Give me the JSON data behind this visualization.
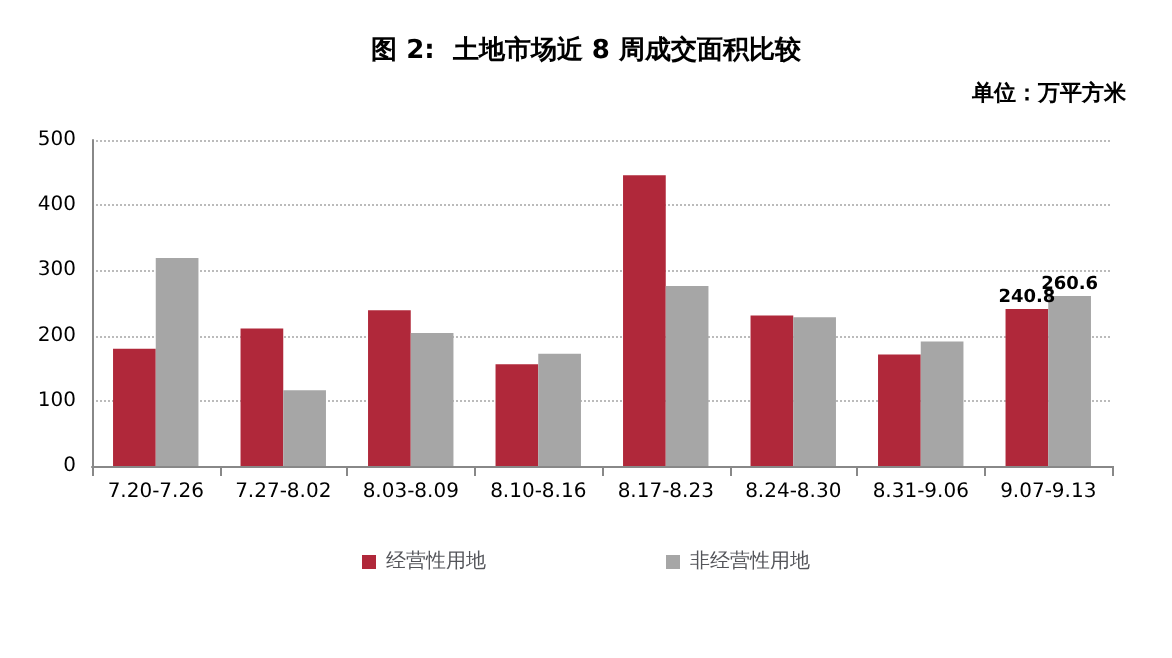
{
  "chart_data": {
    "type": "bar",
    "title": "图 2:  土地市场近 8 周成交面积比较",
    "annotations": [
      "单位：万平方米"
    ],
    "categories": [
      "7.20-7.26",
      "7.27-8.02",
      "8.03-8.09",
      "8.10-8.16",
      "8.17-8.23",
      "8.24-8.30",
      "8.31-9.06",
      "9.07-9.13"
    ],
    "series": [
      {
        "name": "经营性用地",
        "color": "#b0283a",
        "values": [
          180,
          211,
          239,
          156,
          446,
          231,
          171,
          240.8
        ],
        "value_labels": [
          null,
          null,
          null,
          null,
          null,
          null,
          null,
          "240.8"
        ]
      },
      {
        "name": "非经营性用地",
        "color": "#a6a6a6",
        "values": [
          319,
          116,
          204,
          172,
          276,
          228,
          191,
          260.6
        ],
        "value_labels": [
          null,
          null,
          null,
          null,
          null,
          null,
          null,
          "260.6"
        ]
      }
    ],
    "ylim": [
      0,
      500
    ],
    "yticks": [
      0,
      100,
      200,
      300,
      400,
      500
    ],
    "grid": "y",
    "legend": "bottom"
  }
}
